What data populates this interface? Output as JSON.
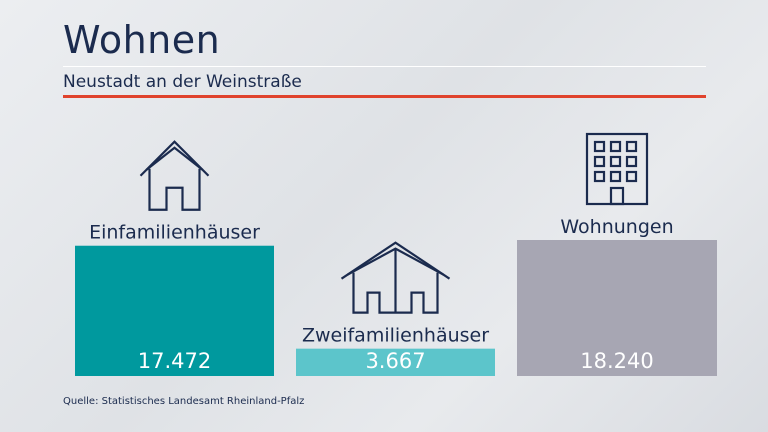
{
  "header": {
    "title": "Wohnen",
    "subtitle": "Neustadt an der Weinstraße"
  },
  "chart_data": {
    "type": "bar",
    "categories": [
      "Einfamilienhäuser",
      "Zweifamilienhäuser",
      "Wohnungen"
    ],
    "values": [
      17472,
      3667,
      18240
    ],
    "value_labels": [
      "17.472",
      "3.667",
      "18.240"
    ],
    "icons": [
      "single-house-icon",
      "double-house-icon",
      "apartment-building-icon"
    ],
    "colors": [
      "#00999e",
      "#5cc5cb",
      "#a7a6b3"
    ],
    "ylim": [
      0,
      18240
    ],
    "grid": false,
    "legend": "none"
  },
  "footer": {
    "source": "Quelle: Statistisches Landesamt Rheinland-Pfalz"
  }
}
